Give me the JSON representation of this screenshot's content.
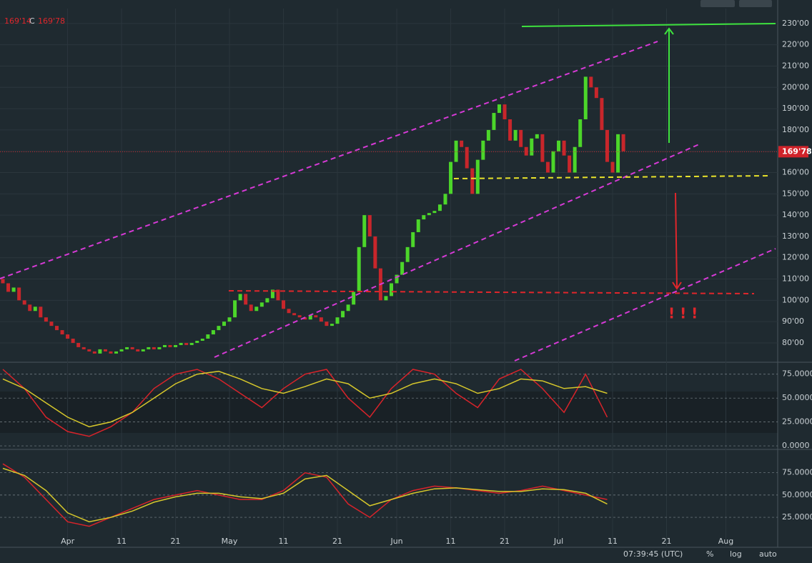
{
  "chart_data": {
    "type": "candlestick",
    "legend_text": [
      "169'14",
      "C",
      "169'78"
    ],
    "up_color": "#4cd62a",
    "down_color": "#c8262b",
    "open": [
      110,
      108,
      104,
      106,
      100,
      98,
      95,
      97,
      92,
      90,
      88,
      86,
      84,
      82,
      80,
      78,
      77,
      76,
      75,
      77,
      76,
      75,
      76,
      77,
      78,
      77,
      76,
      77,
      78,
      77,
      78,
      79,
      78,
      79,
      80,
      79,
      80,
      81,
      82,
      84,
      86,
      88,
      90,
      92,
      100,
      103,
      98,
      95,
      97,
      99,
      101,
      105,
      100,
      96,
      94,
      93,
      92,
      91,
      93,
      92,
      90,
      88,
      89,
      92,
      95,
      98,
      104,
      125,
      140,
      130,
      115,
      100,
      102,
      108,
      112,
      118,
      125,
      132,
      138,
      140,
      141,
      142,
      145,
      150,
      165,
      175,
      172,
      162,
      150,
      166,
      175,
      180,
      188,
      192,
      185,
      175,
      180,
      172,
      168,
      176,
      178,
      165,
      160,
      170,
      175,
      168,
      160,
      172,
      185,
      205,
      200,
      195,
      180,
      165,
      160,
      178
    ],
    "close": [
      108,
      104,
      106,
      100,
      98,
      95,
      97,
      92,
      90,
      88,
      86,
      84,
      82,
      80,
      78,
      77,
      76,
      75,
      77,
      76,
      75,
      76,
      77,
      78,
      77,
      76,
      77,
      78,
      77,
      78,
      79,
      78,
      79,
      80,
      79,
      80,
      81,
      82,
      84,
      86,
      88,
      90,
      92,
      100,
      103,
      98,
      95,
      97,
      99,
      101,
      105,
      100,
      96,
      94,
      93,
      92,
      91,
      93,
      92,
      90,
      88,
      89,
      92,
      95,
      98,
      104,
      125,
      140,
      130,
      115,
      100,
      102,
      108,
      112,
      118,
      125,
      132,
      138,
      140,
      141,
      142,
      145,
      150,
      165,
      175,
      172,
      162,
      150,
      166,
      175,
      180,
      188,
      192,
      185,
      175,
      180,
      172,
      168,
      176,
      178,
      165,
      160,
      170,
      175,
      168,
      160,
      172,
      185,
      205,
      200,
      195,
      180,
      165,
      160,
      178,
      170
    ],
    "xlim": [
      -0.53,
      143.6
    ],
    "xticks": [
      {
        "value": 12,
        "label": "Apr"
      },
      {
        "value": 22,
        "label": "11"
      },
      {
        "value": 32,
        "label": "21"
      },
      {
        "value": 42,
        "label": "May"
      },
      {
        "value": 52,
        "label": "11"
      },
      {
        "value": 62,
        "label": "21"
      },
      {
        "value": 73,
        "label": "Jun"
      },
      {
        "value": 83,
        "label": "11"
      },
      {
        "value": 93,
        "label": "21"
      },
      {
        "value": 103,
        "label": "Jul"
      },
      {
        "value": 113,
        "label": "11"
      },
      {
        "value": 123,
        "label": "21"
      },
      {
        "value": 134,
        "label": "Aug"
      }
    ],
    "ylim": [
      71.6,
      237
    ],
    "yticks": [
      {
        "value": 80,
        "label": "80'00"
      },
      {
        "value": 90,
        "label": "90'00"
      },
      {
        "value": 100,
        "label": "100'00"
      },
      {
        "value": 110,
        "label": "110'00"
      },
      {
        "value": 120,
        "label": "120'00"
      },
      {
        "value": 130,
        "label": "130'00"
      },
      {
        "value": 140,
        "label": "140'00"
      },
      {
        "value": 150,
        "label": "150'00"
      },
      {
        "value": 160,
        "label": "160'00"
      },
      {
        "value": 170,
        "label": "170'00"
      },
      {
        "value": 180,
        "label": "180'00"
      },
      {
        "value": 190,
        "label": "190'00"
      },
      {
        "value": 200,
        "label": "200'00"
      },
      {
        "value": 210,
        "label": "210'00"
      },
      {
        "value": 220,
        "label": "220'00"
      },
      {
        "value": 230,
        "label": "230'00"
      }
    ],
    "last_price": {
      "value": 169.78,
      "label": "169'78"
    },
    "annotation": "! ! !",
    "oscillators": [
      {
        "ylim": [
          -2.2,
          86
        ],
        "yticks": [
          {
            "value": 0,
            "label": "0.0000"
          },
          {
            "value": 25,
            "label": "25.0000"
          },
          {
            "value": 50,
            "label": "50.0000"
          },
          {
            "value": 75,
            "label": "75.0000"
          }
        ],
        "x": [
          0,
          4,
          8,
          12,
          16,
          20,
          24,
          28,
          32,
          36,
          40,
          44,
          48,
          52,
          56,
          60,
          64,
          68,
          72,
          76,
          80,
          84,
          88,
          92,
          96,
          100,
          104,
          108,
          112
        ],
        "series": [
          {
            "color": "#d8232a",
            "values": [
              80,
              60,
              30,
              15,
              10,
              20,
              35,
              60,
              75,
              80,
              70,
              55,
              40,
              60,
              75,
              80,
              50,
              30,
              60,
              80,
              75,
              55,
              40,
              70,
              80,
              60,
              35,
              75,
              30
            ]
          },
          {
            "color": "#d6c72b",
            "values": [
              70,
              60,
              45,
              30,
              20,
              25,
              35,
              50,
              65,
              75,
              78,
              70,
              60,
              55,
              62,
              70,
              65,
              50,
              55,
              65,
              70,
              65,
              55,
              60,
              70,
              68,
              60,
              62,
              55
            ]
          }
        ]
      },
      {
        "ylim": [
          -7,
          99.6
        ],
        "yticks": [
          {
            "value": 25,
            "label": "25.0000"
          },
          {
            "value": 50,
            "label": "50.0000"
          },
          {
            "value": 75,
            "label": "75.0000"
          }
        ],
        "x": [
          0,
          4,
          8,
          12,
          16,
          20,
          24,
          28,
          32,
          36,
          40,
          44,
          48,
          52,
          56,
          60,
          64,
          68,
          72,
          76,
          80,
          84,
          88,
          92,
          96,
          100,
          104,
          108,
          112
        ],
        "series": [
          {
            "color": "#d8232a",
            "values": [
              85,
              70,
              45,
              20,
              15,
              25,
              35,
              45,
              50,
              55,
              50,
              45,
              45,
              55,
              75,
              70,
              40,
              25,
              45,
              55,
              60,
              58,
              55,
              52,
              55,
              60,
              55,
              50,
              45
            ]
          },
          {
            "color": "#d6c72b",
            "values": [
              80,
              72,
              55,
              30,
              20,
              25,
              32,
              42,
              48,
              52,
              52,
              48,
              46,
              52,
              68,
              72,
              55,
              38,
              45,
              52,
              57,
              58,
              56,
              54,
              54,
              57,
              56,
              52,
              40
            ]
          }
        ]
      }
    ],
    "footer": [
      "07:39:45 (UTC)",
      "%",
      "log",
      "auto"
    ]
  }
}
